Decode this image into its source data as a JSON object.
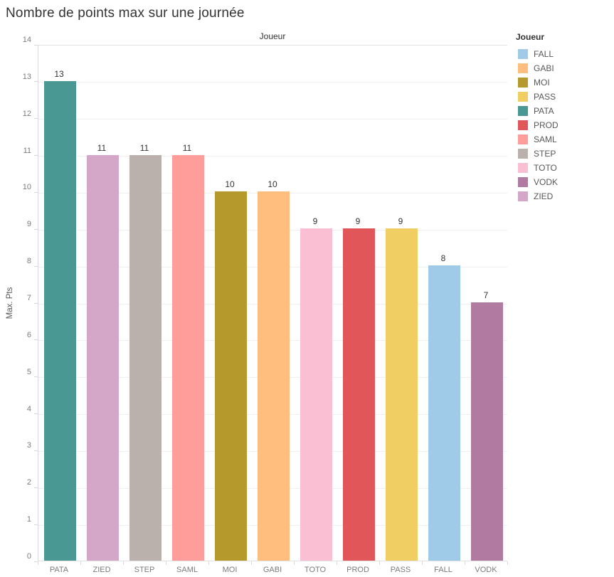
{
  "title": "Nombre de points max sur une journée",
  "axes": {
    "column_header": "Joueur",
    "y_title": "Max. Pts",
    "y_ticks": [
      0,
      1,
      2,
      3,
      4,
      5,
      6,
      7,
      8,
      9,
      10,
      11,
      12,
      13,
      14
    ]
  },
  "legend": {
    "title": "Joueur",
    "items": [
      {
        "label": "FALL",
        "color": "#A0CBE8"
      },
      {
        "label": "GABI",
        "color": "#FFBE7D"
      },
      {
        "label": "MOI",
        "color": "#B6992D"
      },
      {
        "label": "PASS",
        "color": "#F1CE63"
      },
      {
        "label": "PATA",
        "color": "#499894"
      },
      {
        "label": "PROD",
        "color": "#E15759"
      },
      {
        "label": "SAML",
        "color": "#FF9D9A"
      },
      {
        "label": "STEP",
        "color": "#BAB0AC"
      },
      {
        "label": "TOTO",
        "color": "#FABFD2"
      },
      {
        "label": "VODK",
        "color": "#B07AA1"
      },
      {
        "label": "ZIED",
        "color": "#D4A6C8"
      }
    ]
  },
  "chart_data": {
    "type": "bar",
    "title": "Nombre de points max sur une journée",
    "xlabel": "Joueur",
    "ylabel": "Max. Pts",
    "ylim": [
      0,
      14
    ],
    "grid": true,
    "legend_position": "right",
    "value_labels": true,
    "categories": [
      "PATA",
      "ZIED",
      "STEP",
      "SAML",
      "MOI",
      "GABI",
      "TOTO",
      "PROD",
      "PASS",
      "FALL",
      "VODK"
    ],
    "values": [
      13,
      11,
      11,
      11,
      10,
      10,
      9,
      9,
      9,
      8,
      7
    ],
    "colors": {
      "PATA": "#499894",
      "ZIED": "#D4A6C8",
      "STEP": "#BAB0AC",
      "SAML": "#FF9D9A",
      "MOI": "#B6992D",
      "GABI": "#FFBE7D",
      "TOTO": "#FABFD2",
      "PROD": "#E15759",
      "PASS": "#F1CE63",
      "FALL": "#A0CBE8",
      "VODK": "#B07AA1"
    }
  }
}
